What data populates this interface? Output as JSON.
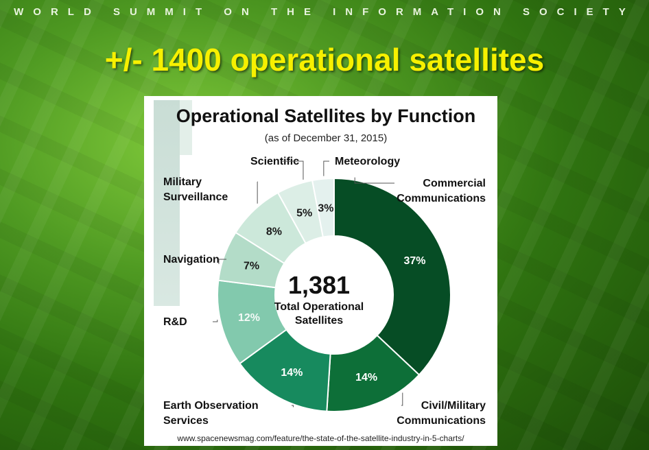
{
  "header": {
    "event_title": "WORLD SUMMIT ON THE INFORMATION SOCIETY"
  },
  "slide": {
    "headline": "+/- 1400 operational satellites"
  },
  "source_url": "www.spacenewsmag.com/feature/the-state-of-the-satellite-industry-in-5-charts/",
  "colors": {
    "headline": "#f7f000",
    "background": "#3c8a18"
  },
  "chart_data": {
    "type": "pie",
    "title": "Operational Satellites by Function",
    "subtitle": "(as of December 31, 2015)",
    "center_value": "1,381",
    "center_label": [
      "Total Operational",
      "Satellites"
    ],
    "slices": [
      {
        "label": "Commercial Communications",
        "label_lines": [
          "Commercial",
          "Communications"
        ],
        "value": 37,
        "value_text": "37%",
        "color": "#064d25"
      },
      {
        "label": "Civil/Military Communications",
        "label_lines": [
          "Civil/Military",
          "Communications"
        ],
        "value": 14,
        "value_text": "14%",
        "color": "#0d6f38"
      },
      {
        "label": "Earth Observation Services",
        "label_lines": [
          "Earth Observation",
          "Services"
        ],
        "value": 14,
        "value_text": "14%",
        "color": "#178a5e"
      },
      {
        "label": "R&D",
        "label_lines": [
          "R&D"
        ],
        "value": 12,
        "value_text": "12%",
        "color": "#82c9ad"
      },
      {
        "label": "Navigation",
        "label_lines": [
          "Navigation"
        ],
        "value": 7,
        "value_text": "7%",
        "color": "#b3dcc8"
      },
      {
        "label": "Military Surveillance",
        "label_lines": [
          "Military",
          "Surveillance"
        ],
        "value": 8,
        "value_text": "8%",
        "color": "#cce8da"
      },
      {
        "label": "Scientific",
        "label_lines": [
          "Scientific"
        ],
        "value": 5,
        "value_text": "5%",
        "color": "#dceee6"
      },
      {
        "label": "Meteorology",
        "label_lines": [
          "Meteorology"
        ],
        "value": 3,
        "value_text": "3%",
        "color": "#e4f1ee"
      }
    ]
  }
}
